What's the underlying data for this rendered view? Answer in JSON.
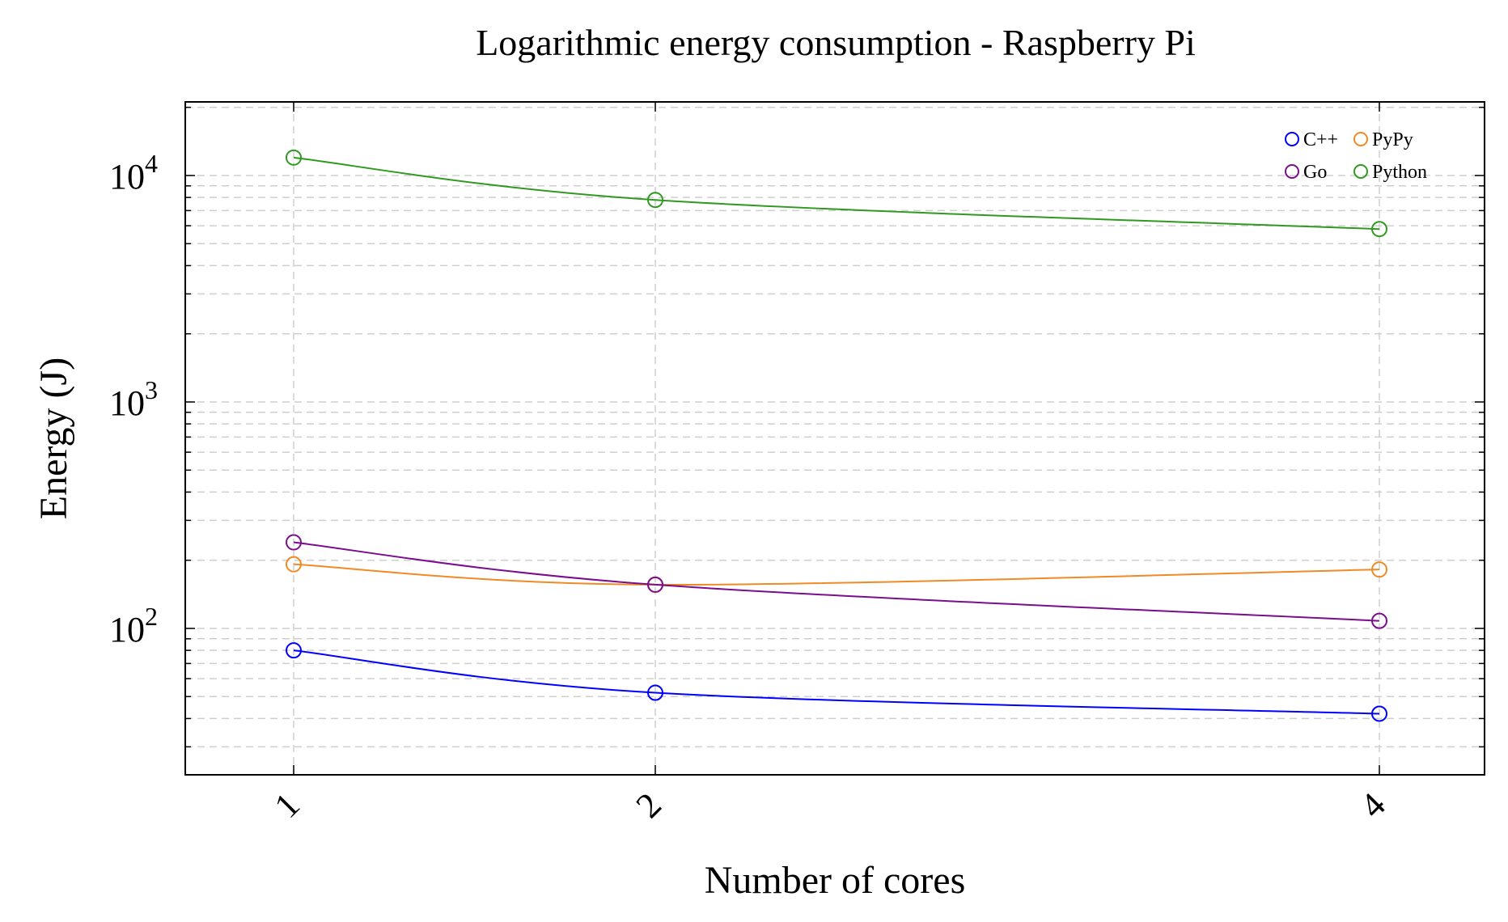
{
  "chart_data": {
    "type": "line",
    "title": "Logarithmic energy consumption - Raspberry Pi",
    "xlabel": "Number of cores",
    "ylabel": "Energy (J)",
    "y_scale": "log",
    "ylim": [
      22,
      20000
    ],
    "x": [
      1,
      2,
      4
    ],
    "x_tick_labels": [
      "1",
      "2",
      "4"
    ],
    "x_tick_rotation_deg": -45,
    "y_ticks": [
      {
        "value": 100,
        "base": "10",
        "exp": "2"
      },
      {
        "value": 1000,
        "base": "10",
        "exp": "3"
      },
      {
        "value": 10000,
        "base": "10",
        "exp": "4"
      }
    ],
    "grid": true,
    "legend": {
      "position": "top-right",
      "columns": 2
    },
    "series": [
      {
        "name": "C++",
        "color": "#0000ff",
        "values": [
          80,
          52,
          42
        ]
      },
      {
        "name": "PyPy",
        "color": "#f08a24",
        "values": [
          192,
          156,
          182
        ]
      },
      {
        "name": "Go",
        "color": "#7b0d8e",
        "values": [
          240,
          156,
          108
        ]
      },
      {
        "name": "Python",
        "color": "#2f9a1f",
        "values": [
          12000,
          7800,
          5800
        ]
      }
    ]
  }
}
